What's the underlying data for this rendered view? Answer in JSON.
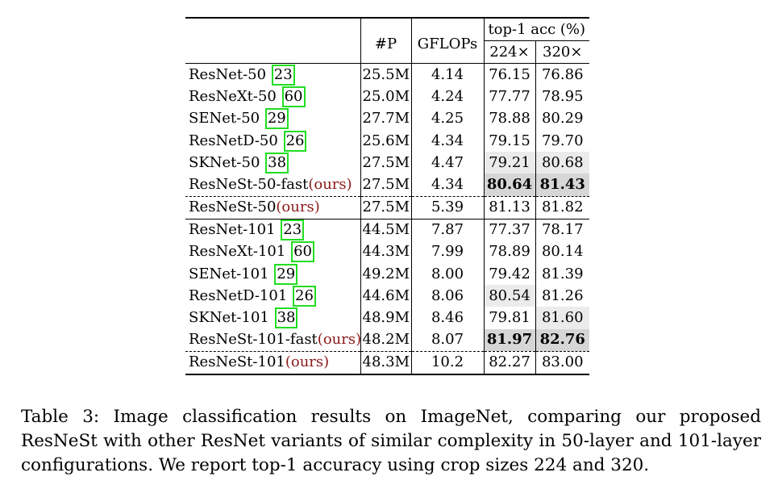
{
  "table": {
    "header": {
      "params": "#P",
      "gflops": "GFLOPs",
      "acc_group": "top-1 acc (%)",
      "res_224": "224×",
      "res_320": "320×"
    },
    "rows": [
      {
        "name": "ResNet-50 ",
        "cite": "23",
        "ours": "",
        "params": "25.5M",
        "gflops": "4.14",
        "acc224": "76.15",
        "acc320": "76.86"
      },
      {
        "name": "ResNeXt-50 ",
        "cite": "60",
        "ours": "",
        "params": "25.0M",
        "gflops": "4.24",
        "acc224": "77.77",
        "acc320": "78.95"
      },
      {
        "name": "SENet-50 ",
        "cite": "29",
        "ours": "",
        "params": "27.7M",
        "gflops": "4.25",
        "acc224": "78.88",
        "acc320": "80.29"
      },
      {
        "name": "ResNetD-50 ",
        "cite": "26",
        "ours": "",
        "params": "25.6M",
        "gflops": "4.34",
        "acc224": "79.15",
        "acc320": "79.70"
      },
      {
        "name": "SKNet-50 ",
        "cite": "38",
        "ours": "",
        "params": "27.5M",
        "gflops": "4.47",
        "acc224": "79.21",
        "acc320": "80.68"
      },
      {
        "name": "ResNeSt-50-fast",
        "cite": "",
        "ours": "(ours)",
        "params": "27.5M",
        "gflops": "4.34",
        "acc224": "80.64",
        "acc320": "81.43"
      },
      {
        "name": "ResNeSt-50",
        "cite": "",
        "ours": "(ours)",
        "params": "27.5M",
        "gflops": "5.39",
        "acc224": "81.13",
        "acc320": "81.82"
      },
      {
        "name": "ResNet-101 ",
        "cite": "23",
        "ours": "",
        "params": "44.5M",
        "gflops": "7.87",
        "acc224": "77.37",
        "acc320": "78.17"
      },
      {
        "name": "ResNeXt-101 ",
        "cite": "60",
        "ours": "",
        "params": "44.3M",
        "gflops": "7.99",
        "acc224": "78.89",
        "acc320": "80.14"
      },
      {
        "name": "SENet-101 ",
        "cite": "29",
        "ours": "",
        "params": "49.2M",
        "gflops": "8.00",
        "acc224": "79.42",
        "acc320": "81.39"
      },
      {
        "name": "ResNetD-101 ",
        "cite": "26",
        "ours": "",
        "params": "44.6M",
        "gflops": "8.06",
        "acc224": "80.54",
        "acc320": "81.26"
      },
      {
        "name": "SKNet-101 ",
        "cite": "38",
        "ours": "",
        "params": "48.9M",
        "gflops": "8.46",
        "acc224": "79.81",
        "acc320": "81.60"
      },
      {
        "name": "ResNeSt-101-fast",
        "cite": "",
        "ours": "(ours)",
        "params": "48.2M",
        "gflops": "8.07",
        "acc224": "81.97",
        "acc320": "82.76"
      },
      {
        "name": "ResNeSt-101",
        "cite": "",
        "ours": "(ours)",
        "params": "48.3M",
        "gflops": "10.2",
        "acc224": "82.27",
        "acc320": "83.00"
      }
    ]
  },
  "caption": "Table 3: Image classification results on ImageNet, comparing our proposed ResNeSt with other ResNet variants of similar complexity in 50-layer and 101-layer configurations. We report top-1 accuracy using crop sizes 224 and 320."
}
